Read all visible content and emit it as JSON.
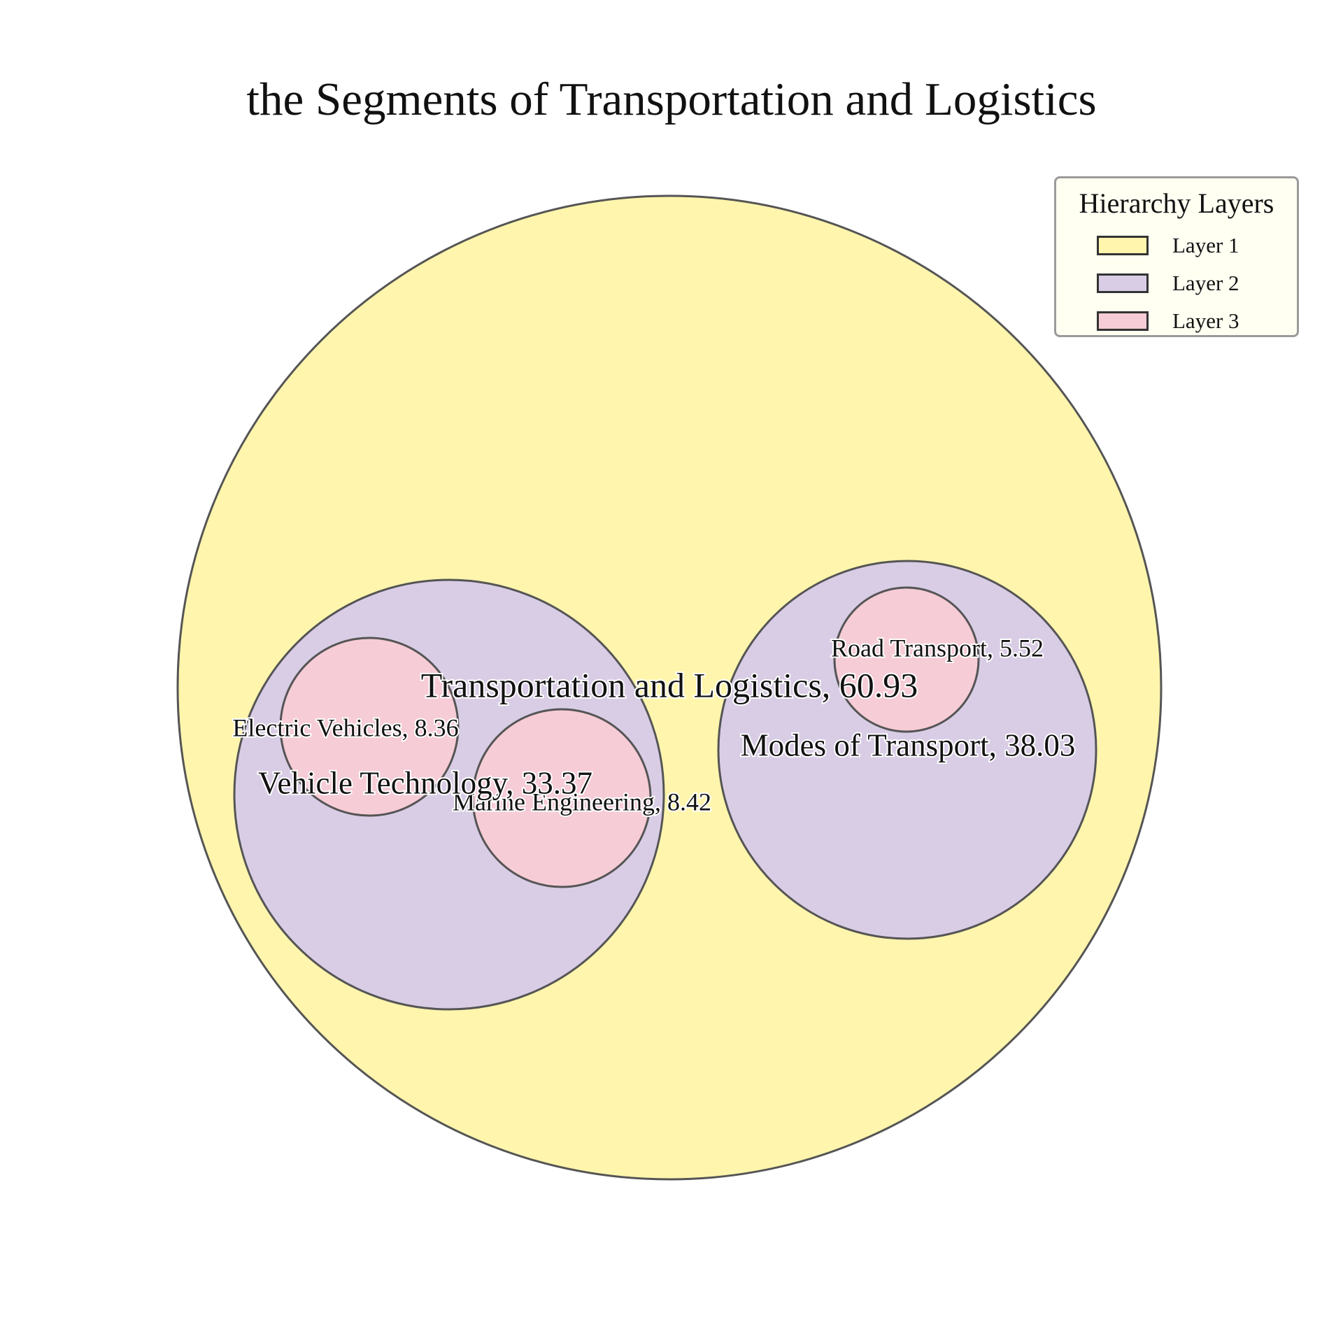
{
  "chart_data": {
    "type": "circle-packing",
    "title": "the Segments of Transportation and Logistics",
    "nodes": [
      {
        "name": "Transportation and Logistics",
        "value": 60.93,
        "layer": 1,
        "label": "Transportation and Logistics, 60.93"
      },
      {
        "name": "Vehicle Technology",
        "value": 33.37,
        "layer": 2,
        "parent": "Transportation and Logistics",
        "label": "Vehicle Technology, 33.37"
      },
      {
        "name": "Modes of Transport",
        "value": 38.03,
        "layer": 2,
        "parent": "Transportation and Logistics",
        "label": "Modes of Transport, 38.03"
      },
      {
        "name": "Electric Vehicles",
        "value": 8.36,
        "layer": 3,
        "parent": "Vehicle Technology",
        "label": "Electric Vehicles, 8.36"
      },
      {
        "name": "Marine Engineering",
        "value": 8.42,
        "layer": 3,
        "parent": "Vehicle Technology",
        "label": "Marine Engineering, 8.42"
      },
      {
        "name": "Road Transport",
        "value": 5.52,
        "layer": 3,
        "parent": "Modes of Transport",
        "label": "Road Transport, 5.52"
      }
    ],
    "legend": {
      "title": "Hierarchy Layers",
      "placement": "top-right",
      "items": [
        {
          "label": "Layer 1",
          "color": "#fff5ad"
        },
        {
          "label": "Layer 2",
          "color": "#d9cde6"
        },
        {
          "label": "Layer 3",
          "color": "#f6ccd6"
        }
      ]
    },
    "colors": {
      "layer1": "#fff5ad",
      "layer2": "#d9cde6",
      "layer3": "#f6ccd6",
      "edge": "#555555"
    }
  }
}
